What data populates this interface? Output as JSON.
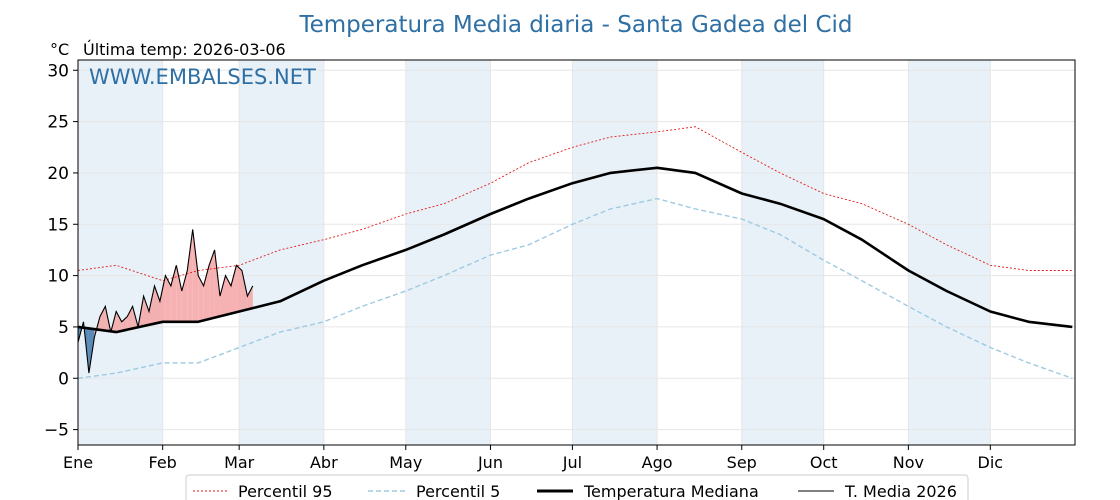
{
  "chart_data": {
    "type": "line",
    "title": "Temperatura Media diaria - Santa Gadea del Cid",
    "unit": "°C",
    "last_temp_label": "Última temp: 2026-03-06",
    "watermark": "WWW.EMBALSES.NET",
    "x_month_labels": [
      "Ene",
      "Feb",
      "Mar",
      "Abr",
      "May",
      "Jun",
      "Jul",
      "Ago",
      "Sep",
      "Oct",
      "Nov",
      "Dic"
    ],
    "y_ticks": [
      -5,
      0,
      5,
      10,
      15,
      20,
      25,
      30
    ],
    "ylim": [
      -6.5,
      31
    ],
    "xlim": [
      "01-01",
      "12-31"
    ],
    "grid": true,
    "legend_position": "bottom-center",
    "colors": {
      "p95": "#e31a1c",
      "p5": "#9ecae1",
      "median": "#000000",
      "current": "#000000",
      "above_fill": "#f4a5a5",
      "below_fill": "#4a7fb0",
      "month_band": "#e8f1f8",
      "title": "#2e6fa4"
    },
    "series": [
      {
        "name": "Percentil 95",
        "style": "dotted",
        "x_day": [
          1,
          15,
          32,
          45,
          60,
          75,
          91,
          105,
          121,
          135,
          152,
          166,
          182,
          196,
          213,
          227,
          244,
          258,
          274,
          288,
          305,
          319,
          335,
          349,
          365
        ],
        "values": [
          10.5,
          11,
          9.5,
          10.5,
          11,
          12.5,
          13.5,
          14.5,
          16,
          17,
          19,
          21,
          22.5,
          23.5,
          24,
          24.5,
          22,
          20,
          18,
          17,
          15,
          13,
          11,
          10.5,
          10.5
        ]
      },
      {
        "name": "Percentil 5",
        "style": "dashed",
        "x_day": [
          1,
          15,
          32,
          45,
          60,
          75,
          91,
          105,
          121,
          135,
          152,
          166,
          182,
          196,
          213,
          227,
          244,
          258,
          274,
          288,
          305,
          319,
          335,
          349,
          365
        ],
        "values": [
          0,
          0.5,
          1.5,
          1.5,
          3,
          4.5,
          5.5,
          7,
          8.5,
          10,
          12,
          13,
          15,
          16.5,
          17.5,
          16.5,
          15.5,
          14,
          11.5,
          9.5,
          7,
          5,
          3,
          1.5,
          0
        ]
      },
      {
        "name": "Temperatura Mediana",
        "style": "solid-thick",
        "x_day": [
          1,
          15,
          32,
          45,
          60,
          75,
          91,
          105,
          121,
          135,
          152,
          166,
          182,
          196,
          213,
          227,
          244,
          258,
          274,
          288,
          305,
          319,
          335,
          349,
          365
        ],
        "values": [
          5,
          4.5,
          5.5,
          5.5,
          6.5,
          7.5,
          9.5,
          11,
          12.5,
          14,
          16,
          17.5,
          19,
          20,
          20.5,
          20,
          18,
          17,
          15.5,
          13.5,
          10.5,
          8.5,
          6.5,
          5.5,
          5
        ]
      },
      {
        "name": "T. Media 2026",
        "style": "solid-thin",
        "x_day": [
          1,
          3,
          5,
          7,
          9,
          11,
          13,
          15,
          17,
          19,
          21,
          23,
          25,
          27,
          29,
          31,
          33,
          35,
          37,
          39,
          41,
          43,
          45,
          47,
          49,
          51,
          53,
          55,
          57,
          59,
          61,
          63,
          65
        ],
        "values": [
          3.5,
          5.5,
          0.5,
          4,
          6,
          7,
          4.5,
          6.5,
          5.5,
          6,
          7,
          5,
          8,
          6.5,
          9,
          7.5,
          10,
          9,
          11,
          8.5,
          10.5,
          14.5,
          10,
          9,
          11,
          12.5,
          8,
          10,
          9,
          11,
          10.5,
          8,
          9
        ]
      }
    ],
    "legend": [
      "Percentil 95",
      "Percentil 5",
      "Temperatura Mediana",
      "T. Media 2026"
    ]
  }
}
